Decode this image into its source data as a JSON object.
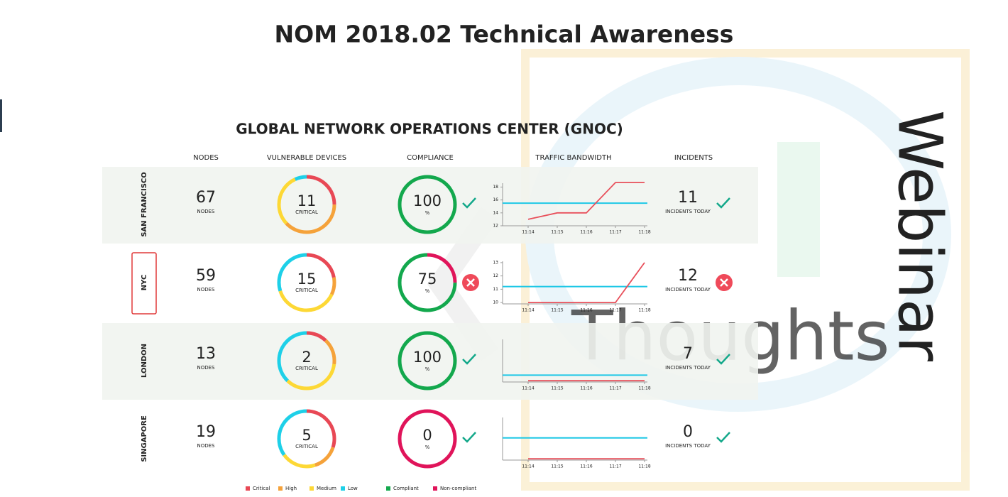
{
  "title": "NOM 2018.02 Technical Awareness",
  "watermark": {
    "brand": "Thoughts",
    "side": "Webinar"
  },
  "dashboard": {
    "title": "GLOBAL NETWORK OPERATIONS CENTER (GNOC)",
    "columns": [
      "NODES",
      "VULNERABLE DEVICES",
      "COMPLIANCE",
      "TRAFFIC BANDWIDTH",
      "INCIDENTS"
    ],
    "vulnerability_colors": [
      "#e84855",
      "#f5a23a",
      "#fdd835",
      "#1ed0e8"
    ],
    "compliance_colors": [
      "#13a84d",
      "#e0145a"
    ],
    "compliance_range": [
      0,
      100
    ],
    "traffic_times": [
      "11:14",
      "11:15",
      "11:16",
      "11:17",
      "11:18"
    ],
    "rows": [
      {
        "site": "SAN FRANCISCO",
        "selected": false,
        "nodes": 67,
        "nodes_label": "NODES",
        "critical": 11,
        "critical_label": "CRITICAL",
        "breakdown": [
          25,
          38,
          30,
          7
        ],
        "compliance": 100,
        "compliance_unit": "%",
        "compliance_ok": true,
        "traffic": {
          "ylim": [
            12,
            18.6
          ],
          "yticks": [
            12,
            14,
            16,
            18
          ],
          "threshold": 15.5,
          "values": [
            13,
            14,
            14,
            18.7,
            18.7
          ]
        },
        "incidents": 11,
        "incidents_label": "INCIDENTS TODAY",
        "incidents_ok": true
      },
      {
        "site": "NYC",
        "selected": true,
        "nodes": 59,
        "nodes_label": "NODES",
        "critical": 15,
        "critical_label": "CRITICAL",
        "breakdown": [
          22,
          10,
          38,
          30
        ],
        "compliance": 75,
        "compliance_unit": "%",
        "compliance_ok": false,
        "traffic": {
          "ylim": [
            9.9,
            13.1
          ],
          "yticks": [
            10,
            11,
            12,
            13
          ],
          "threshold": 11.2,
          "values": [
            10,
            10,
            10,
            10,
            13
          ]
        },
        "incidents": 12,
        "incidents_label": "INCIDENTS TODAY",
        "incidents_ok": false
      },
      {
        "site": "LONDON",
        "selected": false,
        "nodes": 13,
        "nodes_label": "NODES",
        "critical": 2,
        "critical_label": "CRITICAL",
        "breakdown": [
          12,
          15,
          35,
          38
        ],
        "compliance": 100,
        "compliance_unit": "%",
        "compliance_ok": true,
        "traffic": {
          "ylim": [
            0,
            10
          ],
          "yticks": [],
          "threshold": 1.6,
          "values": [
            0.3,
            0.3,
            0.3,
            0.3,
            0.3
          ]
        },
        "incidents": 7,
        "incidents_label": "INCIDENTS TODAY",
        "incidents_ok": true
      },
      {
        "site": "SINGAPORE",
        "selected": false,
        "nodes": 19,
        "nodes_label": "NODES",
        "critical": 5,
        "critical_label": "CRITICAL",
        "breakdown": [
          30,
          15,
          20,
          35
        ],
        "compliance": 0,
        "compliance_unit": "%",
        "compliance_ok": true,
        "traffic": {
          "ylim": [
            0,
            10
          ],
          "yticks": [],
          "threshold": 5.2,
          "values": [
            0.3,
            0.3,
            0.3,
            0.3,
            0.3
          ]
        },
        "incidents": 0,
        "incidents_label": "INCIDENTS TODAY",
        "incidents_ok": true
      }
    ],
    "legend": [
      "Critical",
      "High",
      "Medium",
      "Low",
      "Compliant",
      "Non-compliant"
    ]
  }
}
